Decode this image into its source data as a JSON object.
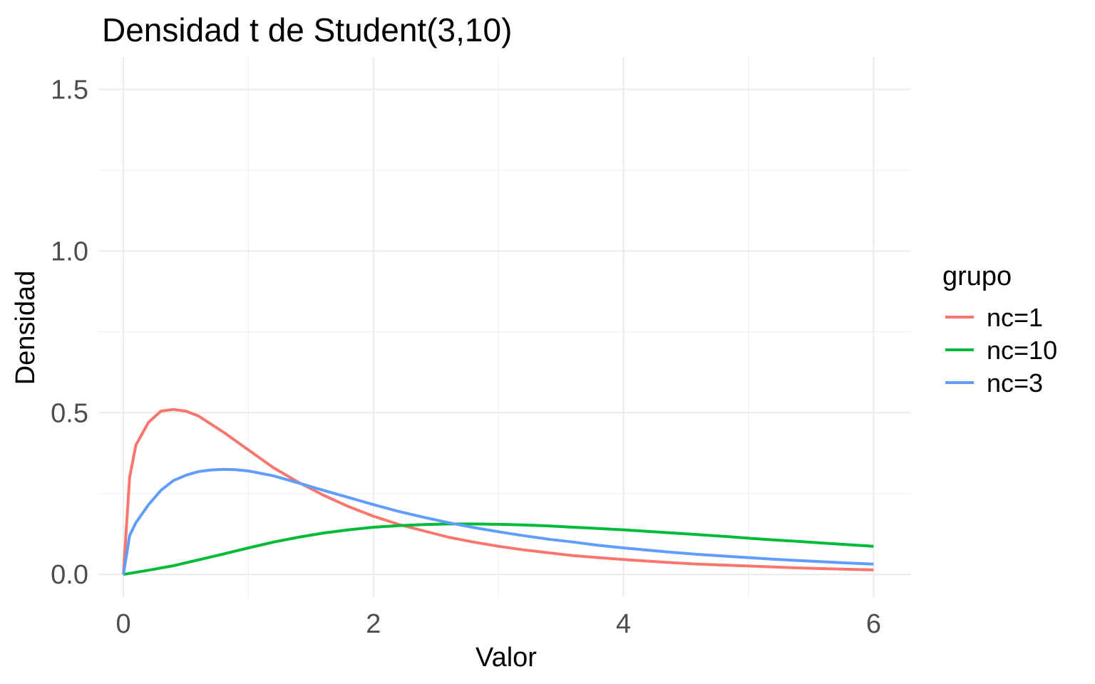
{
  "chart_data": {
    "type": "line",
    "title": "Densidad t de Student(3,10)",
    "xlabel": "Valor",
    "ylabel": "Densidad",
    "xlim": [
      -0.2,
      6.3
    ],
    "ylim": [
      -0.07,
      1.6
    ],
    "x_ticks": [
      0,
      2,
      4,
      6
    ],
    "x_tick_labels": [
      "0",
      "2",
      "4",
      "6"
    ],
    "y_ticks": [
      0.0,
      0.5,
      1.0,
      1.5
    ],
    "y_tick_labels": [
      "0.0",
      "0.5",
      "1.0",
      "1.5"
    ],
    "grid": true,
    "legend": {
      "title": "grupo",
      "position": "right"
    },
    "series": [
      {
        "name": "nc=1",
        "color": "#F8766D",
        "x": [
          0,
          0.05,
          0.1,
          0.2,
          0.3,
          0.4,
          0.5,
          0.6,
          0.8,
          1.0,
          1.2,
          1.4,
          1.6,
          1.8,
          2.0,
          2.2,
          2.4,
          2.6,
          2.8,
          3.0,
          3.2,
          3.4,
          3.6,
          3.8,
          4.0,
          4.2,
          4.4,
          4.6,
          4.8,
          5.0,
          5.2,
          5.4,
          5.6,
          5.8,
          6.0
        ],
        "y": [
          0,
          0.3,
          0.4,
          0.47,
          0.505,
          0.51,
          0.505,
          0.49,
          0.44,
          0.385,
          0.33,
          0.285,
          0.245,
          0.21,
          0.18,
          0.155,
          0.135,
          0.115,
          0.1,
          0.087,
          0.076,
          0.067,
          0.058,
          0.052,
          0.046,
          0.041,
          0.036,
          0.032,
          0.029,
          0.026,
          0.023,
          0.02,
          0.018,
          0.016,
          0.014
        ]
      },
      {
        "name": "nc=10",
        "color": "#00BA38",
        "x": [
          0,
          0.2,
          0.4,
          0.6,
          0.8,
          1.0,
          1.2,
          1.4,
          1.6,
          1.8,
          2.0,
          2.2,
          2.4,
          2.6,
          2.8,
          3.0,
          3.2,
          3.4,
          3.6,
          3.8,
          4.0,
          4.2,
          4.4,
          4.6,
          4.8,
          5.0,
          5.2,
          5.4,
          5.6,
          5.8,
          6.0
        ],
        "y": [
          0,
          0.013,
          0.027,
          0.045,
          0.063,
          0.082,
          0.1,
          0.115,
          0.128,
          0.138,
          0.146,
          0.151,
          0.154,
          0.156,
          0.156,
          0.155,
          0.153,
          0.15,
          0.146,
          0.142,
          0.138,
          0.133,
          0.128,
          0.123,
          0.118,
          0.112,
          0.107,
          0.102,
          0.097,
          0.092,
          0.087
        ]
      },
      {
        "name": "nc=3",
        "color": "#619CFF",
        "x": [
          0,
          0.05,
          0.1,
          0.2,
          0.3,
          0.4,
          0.5,
          0.6,
          0.7,
          0.8,
          0.9,
          1.0,
          1.2,
          1.4,
          1.6,
          1.8,
          2.0,
          2.2,
          2.4,
          2.6,
          2.8,
          3.0,
          3.2,
          3.4,
          3.6,
          3.8,
          4.0,
          4.2,
          4.4,
          4.6,
          4.8,
          5.0,
          5.2,
          5.4,
          5.6,
          5.8,
          6.0
        ],
        "y": [
          0,
          0.12,
          0.16,
          0.215,
          0.26,
          0.29,
          0.307,
          0.318,
          0.323,
          0.325,
          0.324,
          0.32,
          0.305,
          0.283,
          0.26,
          0.238,
          0.216,
          0.195,
          0.177,
          0.16,
          0.145,
          0.132,
          0.12,
          0.109,
          0.1,
          0.09,
          0.082,
          0.075,
          0.068,
          0.062,
          0.057,
          0.052,
          0.047,
          0.043,
          0.039,
          0.035,
          0.032
        ]
      }
    ]
  }
}
